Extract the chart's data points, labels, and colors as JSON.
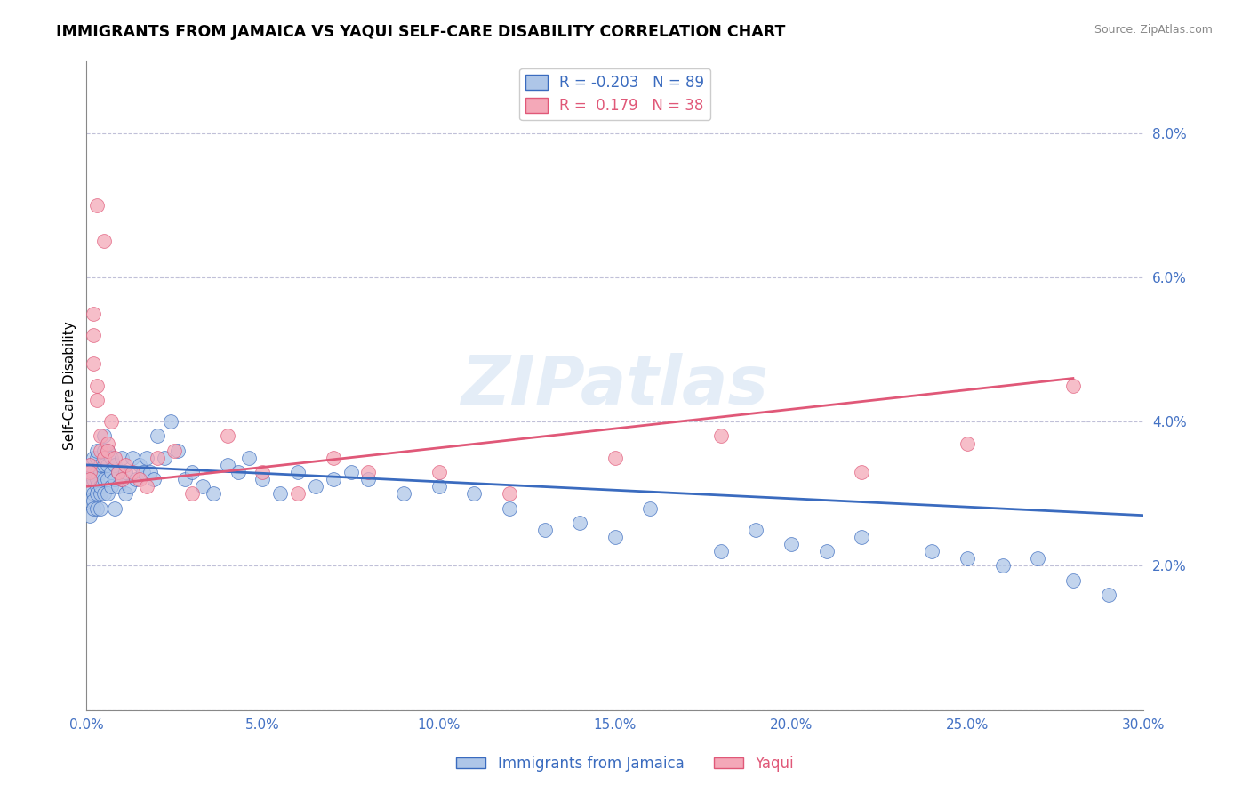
{
  "title": "IMMIGRANTS FROM JAMAICA VS YAQUI SELF-CARE DISABILITY CORRELATION CHART",
  "source": "Source: ZipAtlas.com",
  "ylabel": "Self-Care Disability",
  "xlim": [
    0.0,
    0.3
  ],
  "ylim": [
    0.0,
    0.09
  ],
  "xticks": [
    0.0,
    0.05,
    0.1,
    0.15,
    0.2,
    0.25,
    0.3
  ],
  "xticklabels": [
    "0.0%",
    "5.0%",
    "10.0%",
    "15.0%",
    "20.0%",
    "25.0%",
    "30.0%"
  ],
  "yticks": [
    0.0,
    0.02,
    0.04,
    0.06,
    0.08
  ],
  "yticklabels": [
    "",
    "2.0%",
    "4.0%",
    "6.0%",
    "8.0%"
  ],
  "blue_R": -0.203,
  "blue_N": 89,
  "pink_R": 0.179,
  "pink_N": 38,
  "blue_color": "#aec6e8",
  "pink_color": "#f4a8b8",
  "blue_line_color": "#3a6bbf",
  "pink_line_color": "#e05878",
  "legend_label_blue": "Immigrants from Jamaica",
  "legend_label_pink": "Yaqui",
  "watermark": "ZIPatlas",
  "blue_scatter_x": [
    0.001,
    0.001,
    0.001,
    0.001,
    0.001,
    0.002,
    0.002,
    0.002,
    0.002,
    0.002,
    0.002,
    0.003,
    0.003,
    0.003,
    0.003,
    0.003,
    0.003,
    0.003,
    0.004,
    0.004,
    0.004,
    0.004,
    0.004,
    0.005,
    0.005,
    0.005,
    0.005,
    0.005,
    0.006,
    0.006,
    0.006,
    0.006,
    0.007,
    0.007,
    0.007,
    0.008,
    0.008,
    0.008,
    0.009,
    0.009,
    0.01,
    0.01,
    0.011,
    0.011,
    0.012,
    0.013,
    0.014,
    0.015,
    0.016,
    0.017,
    0.018,
    0.019,
    0.02,
    0.022,
    0.024,
    0.026,
    0.028,
    0.03,
    0.033,
    0.036,
    0.04,
    0.043,
    0.046,
    0.05,
    0.055,
    0.06,
    0.065,
    0.07,
    0.075,
    0.08,
    0.09,
    0.1,
    0.11,
    0.12,
    0.13,
    0.14,
    0.15,
    0.16,
    0.18,
    0.19,
    0.2,
    0.21,
    0.22,
    0.24,
    0.25,
    0.26,
    0.27,
    0.28,
    0.29
  ],
  "blue_scatter_y": [
    0.033,
    0.031,
    0.029,
    0.027,
    0.034,
    0.03,
    0.032,
    0.029,
    0.028,
    0.033,
    0.035,
    0.031,
    0.033,
    0.03,
    0.028,
    0.035,
    0.036,
    0.032,
    0.03,
    0.033,
    0.031,
    0.028,
    0.034,
    0.032,
    0.03,
    0.034,
    0.036,
    0.038,
    0.032,
    0.034,
    0.03,
    0.036,
    0.033,
    0.031,
    0.035,
    0.032,
    0.034,
    0.028,
    0.033,
    0.031,
    0.035,
    0.032,
    0.033,
    0.03,
    0.031,
    0.035,
    0.032,
    0.034,
    0.033,
    0.035,
    0.033,
    0.032,
    0.038,
    0.035,
    0.04,
    0.036,
    0.032,
    0.033,
    0.031,
    0.03,
    0.034,
    0.033,
    0.035,
    0.032,
    0.03,
    0.033,
    0.031,
    0.032,
    0.033,
    0.032,
    0.03,
    0.031,
    0.03,
    0.028,
    0.025,
    0.026,
    0.024,
    0.028,
    0.022,
    0.025,
    0.023,
    0.022,
    0.024,
    0.022,
    0.021,
    0.02,
    0.021,
    0.018,
    0.016
  ],
  "pink_scatter_x": [
    0.001,
    0.001,
    0.001,
    0.002,
    0.002,
    0.002,
    0.003,
    0.003,
    0.003,
    0.004,
    0.004,
    0.005,
    0.005,
    0.006,
    0.006,
    0.007,
    0.008,
    0.009,
    0.01,
    0.011,
    0.013,
    0.015,
    0.017,
    0.02,
    0.025,
    0.03,
    0.04,
    0.05,
    0.06,
    0.07,
    0.08,
    0.1,
    0.12,
    0.15,
    0.18,
    0.22,
    0.25,
    0.28
  ],
  "pink_scatter_y": [
    0.034,
    0.033,
    0.032,
    0.052,
    0.048,
    0.055,
    0.045,
    0.043,
    0.07,
    0.036,
    0.038,
    0.035,
    0.065,
    0.037,
    0.036,
    0.04,
    0.035,
    0.033,
    0.032,
    0.034,
    0.033,
    0.032,
    0.031,
    0.035,
    0.036,
    0.03,
    0.038,
    0.033,
    0.03,
    0.035,
    0.033,
    0.033,
    0.03,
    0.035,
    0.038,
    0.033,
    0.037,
    0.045
  ],
  "blue_trend_x": [
    0.0,
    0.3
  ],
  "blue_trend_y": [
    0.034,
    0.027
  ],
  "pink_trend_x": [
    0.0,
    0.28
  ],
  "pink_trend_y": [
    0.031,
    0.046
  ]
}
